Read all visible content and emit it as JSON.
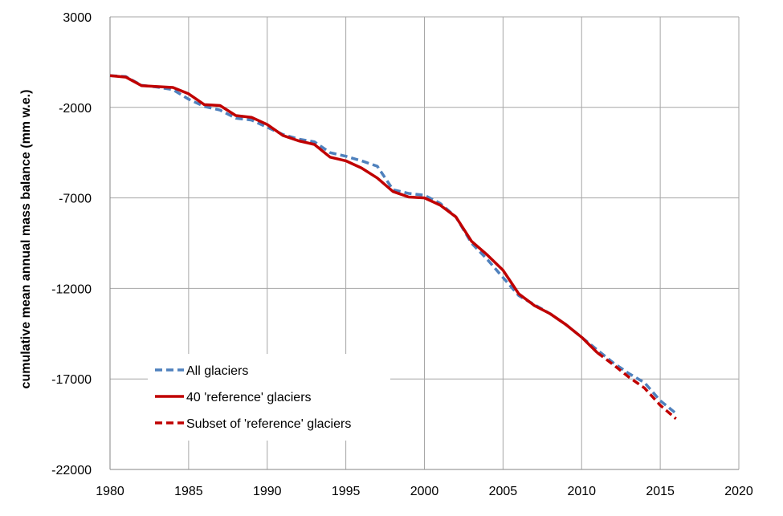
{
  "chart_data": {
    "type": "line",
    "title": "",
    "xlabel": "",
    "ylabel": "cumulative mean annual mass balance (mm w.e.)",
    "xlim": [
      1980,
      2020
    ],
    "ylim": [
      -22000,
      3000
    ],
    "x_ticks": [
      1980,
      1985,
      1990,
      1995,
      2000,
      2005,
      2010,
      2015,
      2020
    ],
    "x_tick_labels": [
      "1980",
      "1985",
      "1990",
      "1995",
      "2000",
      "2005",
      "2010",
      "2015",
      "2020"
    ],
    "y_ticks": [
      3000,
      -2000,
      -7000,
      -12000,
      -17000,
      -22000
    ],
    "y_tick_labels": [
      "3000",
      "-2000",
      "-7000",
      "-12000",
      "-17000",
      "-22000"
    ],
    "grid": true,
    "legend_position": "bottom-left",
    "series": [
      {
        "name": "All glaciers",
        "color": "#4f81bd",
        "style": "dashed",
        "x": [
          1980,
          1981,
          1982,
          1983,
          1984,
          1985,
          1986,
          1987,
          1988,
          1989,
          1990,
          1991,
          1992,
          1993,
          1994,
          1995,
          1996,
          1997,
          1998,
          1999,
          2000,
          2001,
          2002,
          2003,
          2004,
          2005,
          2006,
          2007,
          2008,
          2009,
          2010,
          2011,
          2012,
          2013,
          2014,
          2015,
          2016
        ],
        "y": [
          -250,
          -300,
          -780,
          -880,
          -1020,
          -1550,
          -1950,
          -2150,
          -2600,
          -2700,
          -3100,
          -3500,
          -3750,
          -3900,
          -4500,
          -4700,
          -4950,
          -5250,
          -6550,
          -6750,
          -6850,
          -7300,
          -8050,
          -9500,
          -10400,
          -11400,
          -12400,
          -12900,
          -13400,
          -14000,
          -14700,
          -15400,
          -16100,
          -16700,
          -17200,
          -18200,
          -18900
        ]
      },
      {
        "name": "40 'reference' glaciers",
        "color": "#c00000",
        "style": "solid",
        "x": [
          1980,
          1981,
          1982,
          1983,
          1984,
          1985,
          1986,
          1987,
          1988,
          1989,
          1990,
          1991,
          1992,
          1993,
          1994,
          1995,
          1996,
          1997,
          1998,
          1999,
          2000,
          2001,
          2002,
          2003,
          2004,
          2005,
          2006,
          2007,
          2008,
          2009,
          2010,
          2011
        ],
        "y": [
          -250,
          -330,
          -800,
          -850,
          -900,
          -1250,
          -1850,
          -1900,
          -2450,
          -2550,
          -2950,
          -3550,
          -3850,
          -4050,
          -4750,
          -4950,
          -5350,
          -5900,
          -6650,
          -6950,
          -7000,
          -7400,
          -8050,
          -9400,
          -10150,
          -11000,
          -12300,
          -12950,
          -13400,
          -14000,
          -14700,
          -15550
        ]
      },
      {
        "name": "Subset of 'reference' glaciers",
        "color": "#c00000",
        "style": "dashed",
        "x": [
          2011,
          2012,
          2013,
          2014,
          2015,
          2016
        ],
        "y": [
          -15550,
          -16200,
          -16900,
          -17500,
          -18450,
          -19200
        ]
      }
    ]
  }
}
